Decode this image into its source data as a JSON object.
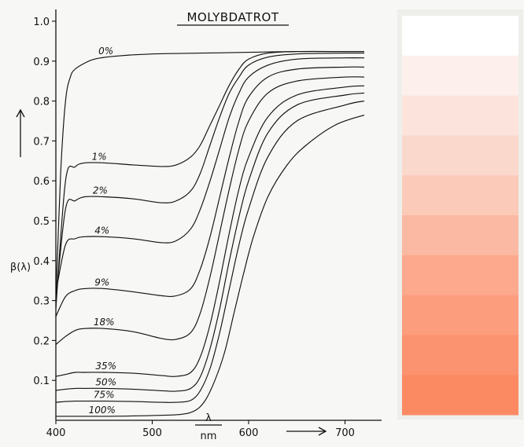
{
  "chart_data": {
    "type": "line",
    "title": "MOLYBDATROT",
    "ylabel": "β(λ)",
    "xlabel_top": "λ",
    "xlabel_bottom": "nm",
    "xlim": [
      400,
      725
    ],
    "ylim": [
      0,
      1.0
    ],
    "xticks": [
      400,
      500,
      600,
      700
    ],
    "yticks": [
      0.1,
      0.2,
      0.3,
      0.4,
      0.5,
      0.6,
      0.7,
      0.8,
      0.9,
      1.0
    ],
    "series": [
      {
        "name": "0%",
        "x": [
          400,
          405,
          410,
          415,
          420,
          430,
          440,
          460,
          500,
          550,
          600,
          620,
          650,
          700,
          720
        ],
        "y": [
          0.3,
          0.62,
          0.8,
          0.86,
          0.88,
          0.895,
          0.905,
          0.912,
          0.918,
          0.92,
          0.922,
          0.923,
          0.924,
          0.924,
          0.924
        ]
      },
      {
        "name": "1%",
        "x": [
          400,
          410,
          420,
          430,
          450,
          480,
          510,
          525,
          540,
          550,
          560,
          570,
          580,
          590,
          600,
          620,
          650,
          700,
          720
        ],
        "y": [
          0.28,
          0.6,
          0.635,
          0.645,
          0.645,
          0.64,
          0.636,
          0.64,
          0.66,
          0.69,
          0.74,
          0.79,
          0.84,
          0.88,
          0.905,
          0.92,
          0.924,
          0.924,
          0.924
        ]
      },
      {
        "name": "2%",
        "x": [
          400,
          410,
          420,
          430,
          450,
          480,
          510,
          525,
          540,
          550,
          560,
          570,
          580,
          590,
          600,
          620,
          650,
          700,
          720
        ],
        "y": [
          0.3,
          0.53,
          0.55,
          0.56,
          0.56,
          0.555,
          0.545,
          0.55,
          0.575,
          0.62,
          0.69,
          0.76,
          0.82,
          0.86,
          0.89,
          0.91,
          0.918,
          0.92,
          0.92
        ]
      },
      {
        "name": "4%",
        "x": [
          400,
          410,
          420,
          430,
          450,
          480,
          510,
          525,
          540,
          550,
          560,
          570,
          580,
          590,
          600,
          620,
          650,
          700,
          720
        ],
        "y": [
          0.32,
          0.44,
          0.455,
          0.46,
          0.46,
          0.455,
          0.445,
          0.45,
          0.48,
          0.53,
          0.6,
          0.68,
          0.76,
          0.82,
          0.86,
          0.89,
          0.905,
          0.908,
          0.908
        ]
      },
      {
        "name": "9%",
        "x": [
          400,
          410,
          420,
          430,
          450,
          480,
          510,
          525,
          540,
          550,
          560,
          570,
          580,
          590,
          600,
          620,
          650,
          700,
          720
        ],
        "y": [
          0.26,
          0.31,
          0.325,
          0.33,
          0.33,
          0.322,
          0.312,
          0.312,
          0.33,
          0.38,
          0.46,
          0.56,
          0.66,
          0.75,
          0.81,
          0.86,
          0.88,
          0.885,
          0.885
        ]
      },
      {
        "name": "18%",
        "x": [
          400,
          410,
          420,
          430,
          450,
          480,
          510,
          525,
          540,
          550,
          560,
          570,
          580,
          590,
          600,
          620,
          650,
          700,
          720
        ],
        "y": [
          0.19,
          0.21,
          0.225,
          0.23,
          0.23,
          0.222,
          0.205,
          0.203,
          0.22,
          0.27,
          0.36,
          0.47,
          0.58,
          0.68,
          0.75,
          0.82,
          0.85,
          0.86,
          0.86
        ]
      },
      {
        "name": "35%",
        "x": [
          400,
          410,
          420,
          430,
          450,
          480,
          510,
          525,
          540,
          550,
          560,
          570,
          580,
          590,
          600,
          620,
          650,
          700,
          720
        ],
        "y": [
          0.11,
          0.115,
          0.12,
          0.12,
          0.12,
          0.118,
          0.112,
          0.11,
          0.12,
          0.16,
          0.24,
          0.35,
          0.47,
          0.58,
          0.66,
          0.76,
          0.815,
          0.835,
          0.838
        ]
      },
      {
        "name": "50%",
        "x": [
          400,
          410,
          420,
          430,
          450,
          480,
          510,
          525,
          540,
          550,
          560,
          570,
          580,
          590,
          600,
          620,
          650,
          700,
          720
        ],
        "y": [
          0.075,
          0.078,
          0.08,
          0.08,
          0.08,
          0.078,
          0.074,
          0.073,
          0.08,
          0.11,
          0.18,
          0.28,
          0.4,
          0.51,
          0.6,
          0.72,
          0.79,
          0.815,
          0.82
        ]
      },
      {
        "name": "75%",
        "x": [
          400,
          410,
          420,
          430,
          450,
          480,
          510,
          525,
          540,
          550,
          560,
          570,
          580,
          590,
          600,
          620,
          650,
          700,
          720
        ],
        "y": [
          0.045,
          0.047,
          0.048,
          0.048,
          0.048,
          0.047,
          0.045,
          0.045,
          0.05,
          0.075,
          0.13,
          0.22,
          0.33,
          0.44,
          0.53,
          0.66,
          0.75,
          0.79,
          0.8
        ]
      },
      {
        "name": "100%",
        "x": [
          400,
          450,
          500,
          530,
          545,
          555,
          565,
          575,
          585,
          595,
          605,
          620,
          640,
          660,
          690,
          720
        ],
        "y": [
          0.01,
          0.01,
          0.012,
          0.015,
          0.025,
          0.05,
          0.1,
          0.17,
          0.27,
          0.37,
          0.46,
          0.56,
          0.64,
          0.69,
          0.74,
          0.765
        ]
      }
    ],
    "swatches": [
      "#ffffff",
      "#fdf0ec",
      "#fce4dc",
      "#fbd8cc",
      "#fbcab9",
      "#fbb9a3",
      "#fca98d",
      "#fc9e7e",
      "#fc9370",
      "#fb8a63"
    ]
  }
}
